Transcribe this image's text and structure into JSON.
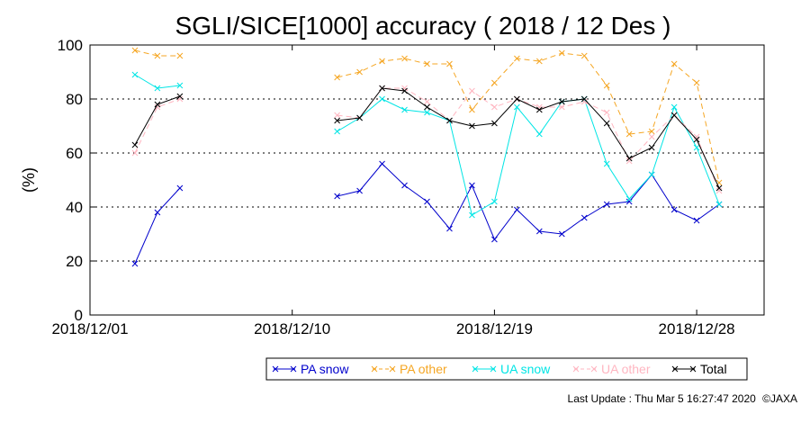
{
  "chart_data": {
    "type": "line",
    "title": "SGLI/SICE[1000] accuracy ( 2018 / 12 Des )",
    "xlabel": "",
    "ylabel": "(%)",
    "ylim": [
      0,
      100
    ],
    "yticks": [
      0,
      20,
      40,
      60,
      80,
      100
    ],
    "y_gridlines": [
      20,
      40,
      60,
      80
    ],
    "x_range_days": [
      1,
      31
    ],
    "xticks": [
      {
        "day": 1,
        "label": "2018/12/01"
      },
      {
        "day": 10,
        "label": "2018/12/10"
      },
      {
        "day": 19,
        "label": "2018/12/19"
      },
      {
        "day": 28,
        "label": "2018/12/28"
      }
    ],
    "legend_position": "bottom",
    "series": [
      {
        "name": "PA snow",
        "color": "#0000cc",
        "dash": "solid",
        "points": [
          [
            3,
            19
          ],
          [
            4,
            38
          ],
          [
            5,
            47
          ],
          null,
          [
            12,
            44
          ],
          [
            13,
            46
          ],
          [
            14,
            56
          ],
          [
            15,
            48
          ],
          [
            16,
            42
          ],
          [
            17,
            32
          ],
          [
            18,
            48
          ],
          [
            19,
            28
          ],
          [
            20,
            39
          ],
          [
            21,
            31
          ],
          [
            22,
            30
          ],
          [
            23,
            36
          ],
          [
            24,
            41
          ],
          [
            25,
            42
          ],
          [
            26,
            52
          ],
          [
            27,
            39
          ],
          [
            28,
            35
          ],
          [
            29,
            41
          ]
        ]
      },
      {
        "name": "PA other",
        "color": "#f5a623",
        "dash": "dashed",
        "points": [
          [
            3,
            98
          ],
          [
            4,
            96
          ],
          [
            5,
            96
          ],
          null,
          [
            12,
            88
          ],
          [
            13,
            90
          ],
          [
            14,
            94
          ],
          [
            15,
            95
          ],
          [
            16,
            93
          ],
          [
            17,
            93
          ],
          [
            18,
            76
          ],
          [
            19,
            86
          ],
          [
            20,
            95
          ],
          [
            21,
            94
          ],
          [
            22,
            97
          ],
          [
            23,
            96
          ],
          [
            24,
            85
          ],
          [
            25,
            67
          ],
          [
            26,
            68
          ],
          [
            27,
            93
          ],
          [
            28,
            86
          ],
          [
            29,
            49
          ]
        ]
      },
      {
        "name": "UA snow",
        "color": "#00e5e5",
        "dash": "solid",
        "points": [
          [
            3,
            89
          ],
          [
            4,
            84
          ],
          [
            5,
            85
          ],
          null,
          [
            12,
            68
          ],
          [
            13,
            73
          ],
          [
            14,
            80
          ],
          [
            15,
            76
          ],
          [
            16,
            75
          ],
          [
            17,
            72
          ],
          [
            18,
            37
          ],
          [
            19,
            42
          ],
          [
            20,
            77
          ],
          [
            21,
            67
          ],
          [
            22,
            79
          ],
          [
            23,
            80
          ],
          [
            24,
            56
          ],
          [
            25,
            43
          ],
          [
            26,
            52
          ],
          [
            27,
            77
          ],
          [
            28,
            62
          ],
          [
            29,
            41
          ]
        ]
      },
      {
        "name": "UA other",
        "color": "#ffb6c1",
        "dash": "dashed",
        "points": [
          [
            3,
            60
          ],
          [
            4,
            77
          ],
          [
            5,
            80
          ],
          null,
          [
            12,
            74
          ],
          [
            13,
            73
          ],
          [
            14,
            84
          ],
          [
            15,
            84
          ],
          [
            16,
            79
          ],
          [
            17,
            72
          ],
          [
            18,
            83
          ],
          [
            19,
            77
          ],
          [
            20,
            80
          ],
          [
            21,
            77
          ],
          [
            22,
            77
          ],
          [
            23,
            79
          ],
          [
            24,
            75
          ],
          [
            25,
            57
          ],
          [
            26,
            66
          ],
          [
            27,
            74
          ],
          [
            28,
            66
          ],
          [
            29,
            46
          ]
        ]
      },
      {
        "name": "Total",
        "color": "#000000",
        "dash": "solid",
        "points": [
          [
            3,
            63
          ],
          [
            4,
            78
          ],
          [
            5,
            81
          ],
          null,
          [
            12,
            72
          ],
          [
            13,
            73
          ],
          [
            14,
            84
          ],
          [
            15,
            83
          ],
          [
            16,
            77
          ],
          [
            17,
            72
          ],
          [
            18,
            70
          ],
          [
            19,
            71
          ],
          [
            20,
            80
          ],
          [
            21,
            76
          ],
          [
            22,
            79
          ],
          [
            23,
            80
          ],
          [
            24,
            71
          ],
          [
            25,
            58
          ],
          [
            26,
            62
          ],
          [
            27,
            74
          ],
          [
            28,
            65
          ],
          [
            29,
            47
          ]
        ]
      }
    ]
  },
  "footer": {
    "last_update_label": "Last Update : Thu Mar  5 16:27:47 2020",
    "copyright": "©JAXA"
  }
}
